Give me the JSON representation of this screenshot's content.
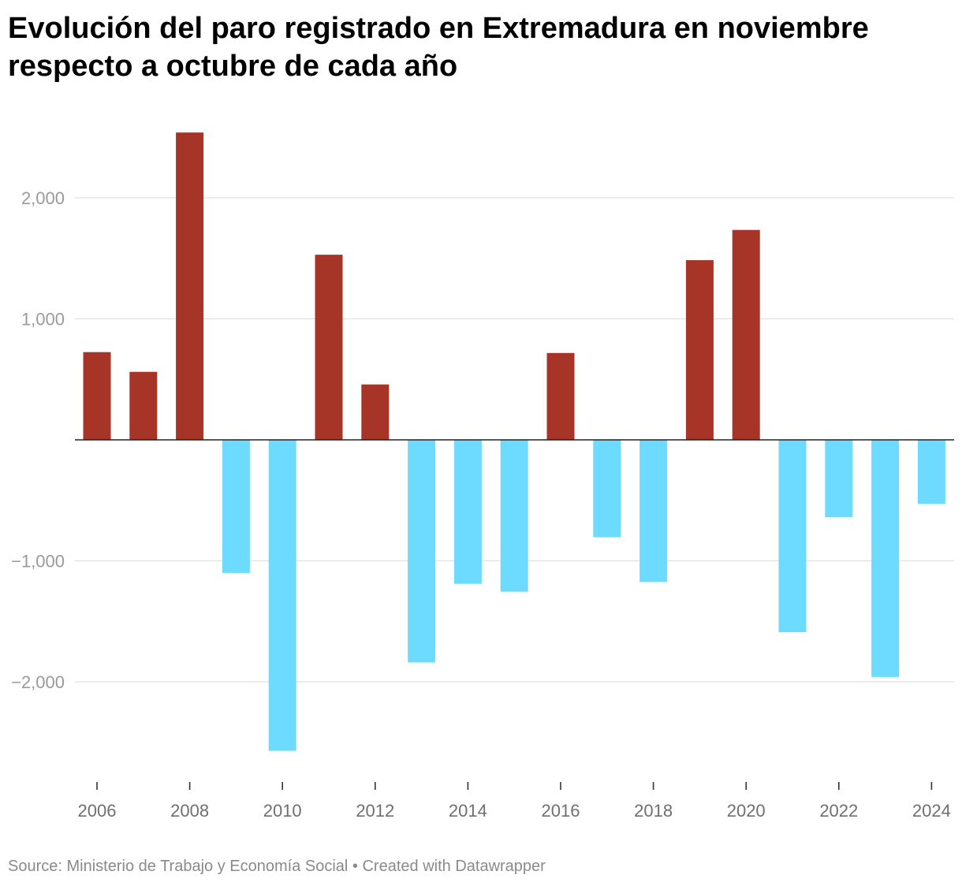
{
  "title": "Evolución del paro registrado en Extremadura en noviembre respecto a octubre de cada año",
  "footer": {
    "source_label": "Source:",
    "source": "Ministerio de Trabajo y Economía Social",
    "separator": "•",
    "credit": "Created with Datawrapper"
  },
  "colors": {
    "positive": "#a63427",
    "negative": "#6ddaff",
    "grid": "#e0e0e0",
    "zero_line": "#222222"
  },
  "chart_data": {
    "type": "bar",
    "title": "Evolución del paro registrado en Extremadura en noviembre respecto a octubre de cada año",
    "xlabel": "",
    "ylabel": "",
    "categories": [
      "2006",
      "2007",
      "2008",
      "2009",
      "2010",
      "2011",
      "2012",
      "2013",
      "2014",
      "2015",
      "2016",
      "2017",
      "2018",
      "2019",
      "2020",
      "2021",
      "2022",
      "2023",
      "2024"
    ],
    "values": [
      725,
      562,
      2540,
      -1100,
      -2570,
      1530,
      458,
      -1840,
      -1190,
      -1255,
      718,
      -805,
      -1175,
      1485,
      1735,
      -1590,
      -640,
      -1960,
      -530
    ],
    "ylim": [
      -2800,
      2800
    ],
    "yticks": [
      -2000,
      -1000,
      1000,
      2000
    ],
    "ytick_labels": [
      "−2,000",
      "−1,000",
      "1,000",
      "2,000"
    ],
    "xtick_labels": [
      "2006",
      "2008",
      "2010",
      "2012",
      "2014",
      "2016",
      "2018",
      "2020",
      "2022",
      "2024"
    ],
    "grid": true,
    "legend": "none"
  }
}
